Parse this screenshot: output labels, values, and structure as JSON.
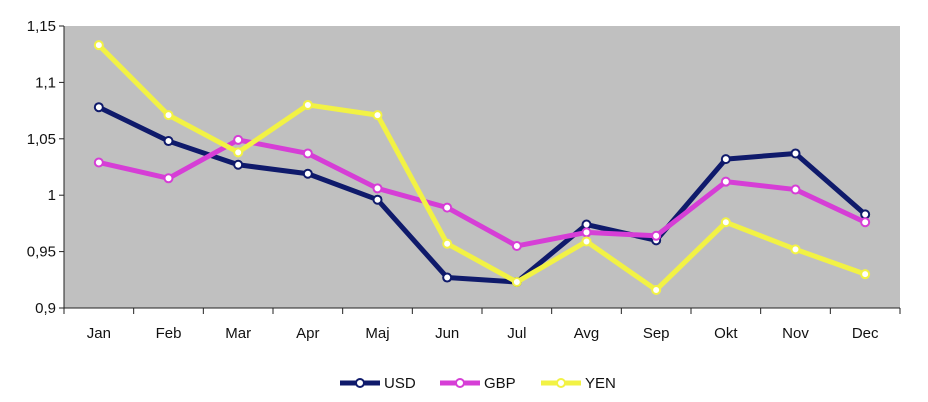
{
  "chart_data": {
    "type": "line",
    "title": "",
    "xlabel": "",
    "ylabel": "",
    "categories": [
      "Jan",
      "Feb",
      "Mar",
      "Apr",
      "Maj",
      "Jun",
      "Jul",
      "Avg",
      "Sep",
      "Okt",
      "Nov",
      "Dec"
    ],
    "ylim": [
      0.9,
      1.15
    ],
    "yticks": [
      "0,9",
      "0,95",
      "1",
      "1,05",
      "1,1",
      "1,15"
    ],
    "ytick_values": [
      0.9,
      0.95,
      1.0,
      1.05,
      1.1,
      1.15
    ],
    "grid": false,
    "plot_background": "#c0c0c0",
    "legend_position": "bottom",
    "series": [
      {
        "name": "USD",
        "color": "#0f1a6b",
        "values": [
          1.078,
          1.048,
          1.027,
          1.019,
          0.996,
          0.927,
          0.923,
          0.974,
          0.96,
          1.032,
          1.037,
          0.983
        ]
      },
      {
        "name": "GBP",
        "color": "#d63ed6",
        "values": [
          1.029,
          1.015,
          1.049,
          1.037,
          1.006,
          0.989,
          0.955,
          0.967,
          0.964,
          1.012,
          1.005,
          0.976
        ]
      },
      {
        "name": "YEN",
        "color": "#f2f244",
        "values": [
          1.133,
          1.071,
          1.038,
          1.08,
          1.071,
          0.957,
          0.923,
          0.959,
          0.916,
          0.976,
          0.952,
          0.93
        ]
      }
    ]
  }
}
